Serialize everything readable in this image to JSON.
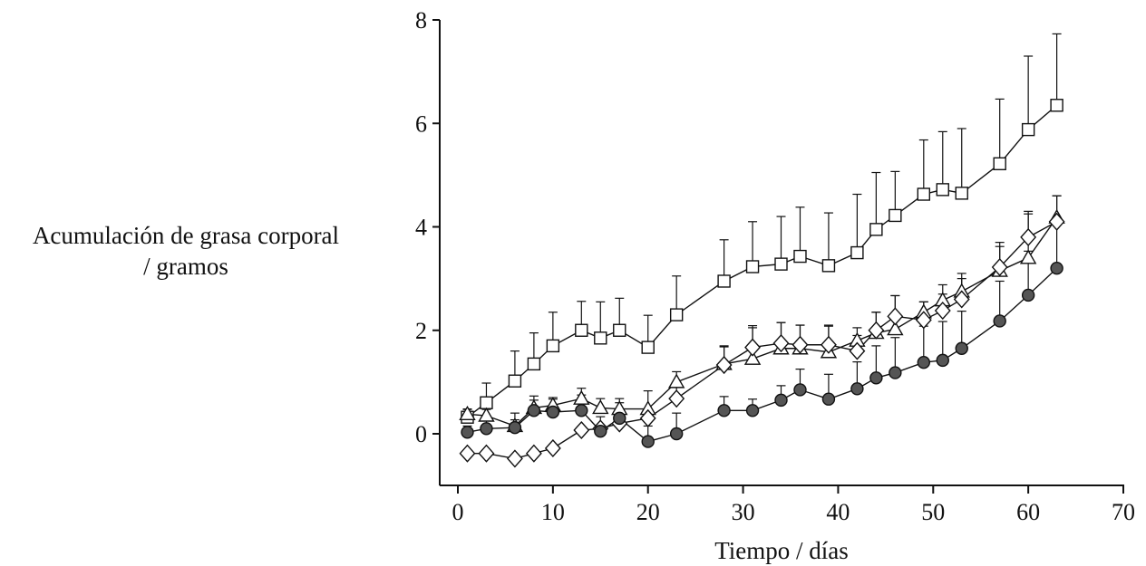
{
  "chart_data": {
    "type": "line",
    "title": "",
    "xlabel": "Tiempo / días",
    "ylabel_line1": "Acumulación de grasa corporal",
    "ylabel_line2": "/ gramos",
    "xlim": [
      0,
      70
    ],
    "ylim": [
      -1,
      8
    ],
    "xticks": [
      0,
      10,
      20,
      30,
      40,
      50,
      60,
      70
    ],
    "yticks": [
      0,
      2,
      4,
      6,
      8
    ],
    "grid": false,
    "legend": "none",
    "series": [
      {
        "marker": "square",
        "fill": "#ffffff",
        "stroke": "#111111",
        "x": [
          1,
          3,
          6,
          8,
          10,
          13,
          15,
          17,
          20,
          23,
          28,
          31,
          34,
          36,
          39,
          42,
          44,
          46,
          49,
          51,
          53,
          57,
          60,
          63
        ],
        "y": [
          0.32,
          0.6,
          1.02,
          1.35,
          1.7,
          2.0,
          1.85,
          2.0,
          1.67,
          2.3,
          2.95,
          3.23,
          3.28,
          3.43,
          3.25,
          3.5,
          3.95,
          4.22,
          4.63,
          4.72,
          4.65,
          5.22,
          5.88,
          6.35
        ],
        "err": [
          0.15,
          0.38,
          0.58,
          0.6,
          0.65,
          0.56,
          0.7,
          0.62,
          0.62,
          0.75,
          0.8,
          0.87,
          0.92,
          0.95,
          1.02,
          1.13,
          1.1,
          0.85,
          1.05,
          1.12,
          1.25,
          1.25,
          1.42,
          1.38
        ]
      },
      {
        "marker": "triangle",
        "fill": "#ffffff",
        "stroke": "#111111",
        "x": [
          1,
          3,
          6,
          8,
          10,
          13,
          15,
          17,
          20,
          23,
          28,
          31,
          34,
          36,
          39,
          42,
          44,
          46,
          49,
          51,
          53,
          57,
          60,
          63
        ],
        "y": [
          0.38,
          0.35,
          0.15,
          0.5,
          0.55,
          0.68,
          0.5,
          0.48,
          0.48,
          1.0,
          1.35,
          1.45,
          1.65,
          1.65,
          1.58,
          1.8,
          1.95,
          2.02,
          2.35,
          2.58,
          2.75,
          3.15,
          3.4,
          4.18
        ],
        "err": [
          0.1,
          0.12,
          0.12,
          0.15,
          0.15,
          0.2,
          0.18,
          0.2,
          0.35,
          0.2,
          0.35,
          0.6,
          0.5,
          0.45,
          0.5,
          0.25,
          0.4,
          0.65,
          0.2,
          0.3,
          0.35,
          0.55,
          0.85,
          0.42
        ]
      },
      {
        "marker": "diamond",
        "fill": "#ffffff",
        "stroke": "#111111",
        "x": [
          1,
          3,
          6,
          8,
          10,
          13,
          15,
          17,
          20,
          23,
          28,
          31,
          34,
          36,
          39,
          42,
          44,
          46,
          49,
          51,
          53,
          57,
          60,
          63
        ],
        "y": [
          -0.38,
          -0.38,
          -0.48,
          -0.38,
          -0.28,
          0.07,
          0.1,
          0.2,
          0.3,
          0.68,
          1.33,
          1.67,
          1.75,
          1.72,
          1.72,
          1.6,
          2.0,
          2.27,
          2.2,
          2.38,
          2.6,
          3.22,
          3.8,
          4.1
        ],
        "err": [
          0,
          0,
          0,
          0,
          0,
          0,
          0,
          0,
          0,
          0.22,
          0.35,
          0.42,
          0.4,
          0.38,
          0.38,
          0.3,
          0.35,
          0.4,
          0.35,
          0.32,
          0.4,
          0.4,
          0.5,
          0.5
        ]
      },
      {
        "marker": "circle",
        "fill": "#555555",
        "stroke": "#111111",
        "x": [
          1,
          3,
          6,
          8,
          10,
          13,
          15,
          17,
          20,
          23,
          28,
          31,
          34,
          36,
          39,
          42,
          44,
          46,
          49,
          51,
          53,
          57,
          60,
          63
        ],
        "y": [
          0.03,
          0.1,
          0.12,
          0.45,
          0.42,
          0.45,
          0.05,
          0.3,
          -0.15,
          0.0,
          0.45,
          0.45,
          0.65,
          0.85,
          0.67,
          0.87,
          1.08,
          1.18,
          1.38,
          1.42,
          1.65,
          2.18,
          2.68,
          3.2
        ],
        "err": [
          0.12,
          0.15,
          0.28,
          0.28,
          0.25,
          0.3,
          0.28,
          0.3,
          0.3,
          0.4,
          0.27,
          0.22,
          0.28,
          0.4,
          0.48,
          0.52,
          0.62,
          0.68,
          0.7,
          0.75,
          0.72,
          0.77,
          0.85,
          0.85
        ]
      }
    ]
  }
}
